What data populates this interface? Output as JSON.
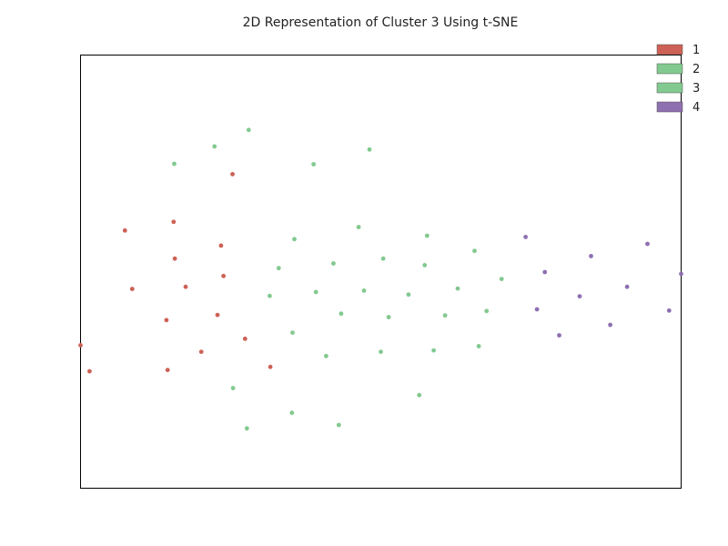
{
  "chart_data": {
    "type": "scatter",
    "title": "2D Representation of Cluster 3 Using t-SNE",
    "xlabel": "",
    "ylabel": "",
    "xlim": [
      0,
      100
    ],
    "ylim": [
      0,
      100
    ],
    "grid": false,
    "legend_position": "top-right",
    "colors": {
      "1": "#cd6155",
      "2": "#82c98f",
      "3": "#82c98f",
      "4": "#8e6fb0"
    },
    "series": [
      {
        "name": "1",
        "points": [
          [
            0.0,
            33.0
          ],
          [
            1.5,
            27.0
          ],
          [
            7.4,
            59.5
          ],
          [
            8.6,
            46.0
          ],
          [
            14.3,
            38.8
          ],
          [
            14.5,
            27.3
          ],
          [
            15.5,
            61.5
          ],
          [
            15.7,
            53.0
          ],
          [
            17.5,
            46.5
          ],
          [
            20.1,
            31.5
          ],
          [
            22.8,
            40.0
          ],
          [
            23.4,
            56.0
          ],
          [
            23.8,
            49.0
          ],
          [
            25.3,
            72.5
          ],
          [
            27.4,
            34.5
          ],
          [
            31.6,
            28.0
          ]
        ]
      },
      {
        "name": "2",
        "points": [
          [
            15.6,
            74.9
          ],
          [
            22.3,
            78.9
          ],
          [
            28.0,
            82.7
          ],
          [
            25.4,
            23.1
          ],
          [
            27.7,
            13.8
          ],
          [
            31.5,
            44.4
          ],
          [
            33.0,
            50.8
          ],
          [
            35.3,
            35.9
          ],
          [
            35.6,
            57.5
          ],
          [
            35.2,
            17.4
          ],
          [
            38.8,
            74.8
          ],
          [
            39.2,
            45.3
          ],
          [
            40.9,
            30.5
          ],
          [
            42.1,
            51.9
          ],
          [
            43.4,
            40.3
          ],
          [
            43.0,
            14.6
          ],
          [
            46.3,
            60.3
          ],
          [
            47.2,
            45.6
          ],
          [
            48.1,
            78.2
          ],
          [
            50.0,
            31.5
          ],
          [
            50.4,
            53.0
          ],
          [
            51.3,
            39.5
          ],
          [
            54.6,
            44.7
          ]
        ]
      },
      {
        "name": "3",
        "points": [
          [
            56.4,
            21.5
          ],
          [
            57.3,
            51.5
          ],
          [
            57.7,
            58.3
          ],
          [
            58.8,
            31.8
          ],
          [
            60.7,
            39.9
          ],
          [
            62.8,
            46.1
          ],
          [
            65.6,
            54.8
          ],
          [
            66.3,
            32.8
          ],
          [
            67.6,
            40.9
          ],
          [
            70.1,
            48.3
          ]
        ]
      },
      {
        "name": "4",
        "points": [
          [
            74.1,
            58.0
          ],
          [
            76.0,
            41.3
          ],
          [
            77.3,
            49.9
          ],
          [
            79.7,
            35.3
          ],
          [
            83.1,
            44.3
          ],
          [
            85.0,
            53.6
          ],
          [
            88.2,
            37.7
          ],
          [
            91.0,
            46.5
          ],
          [
            94.4,
            56.4
          ],
          [
            98.0,
            41.0
          ],
          [
            100.0,
            49.5
          ]
        ]
      }
    ]
  }
}
